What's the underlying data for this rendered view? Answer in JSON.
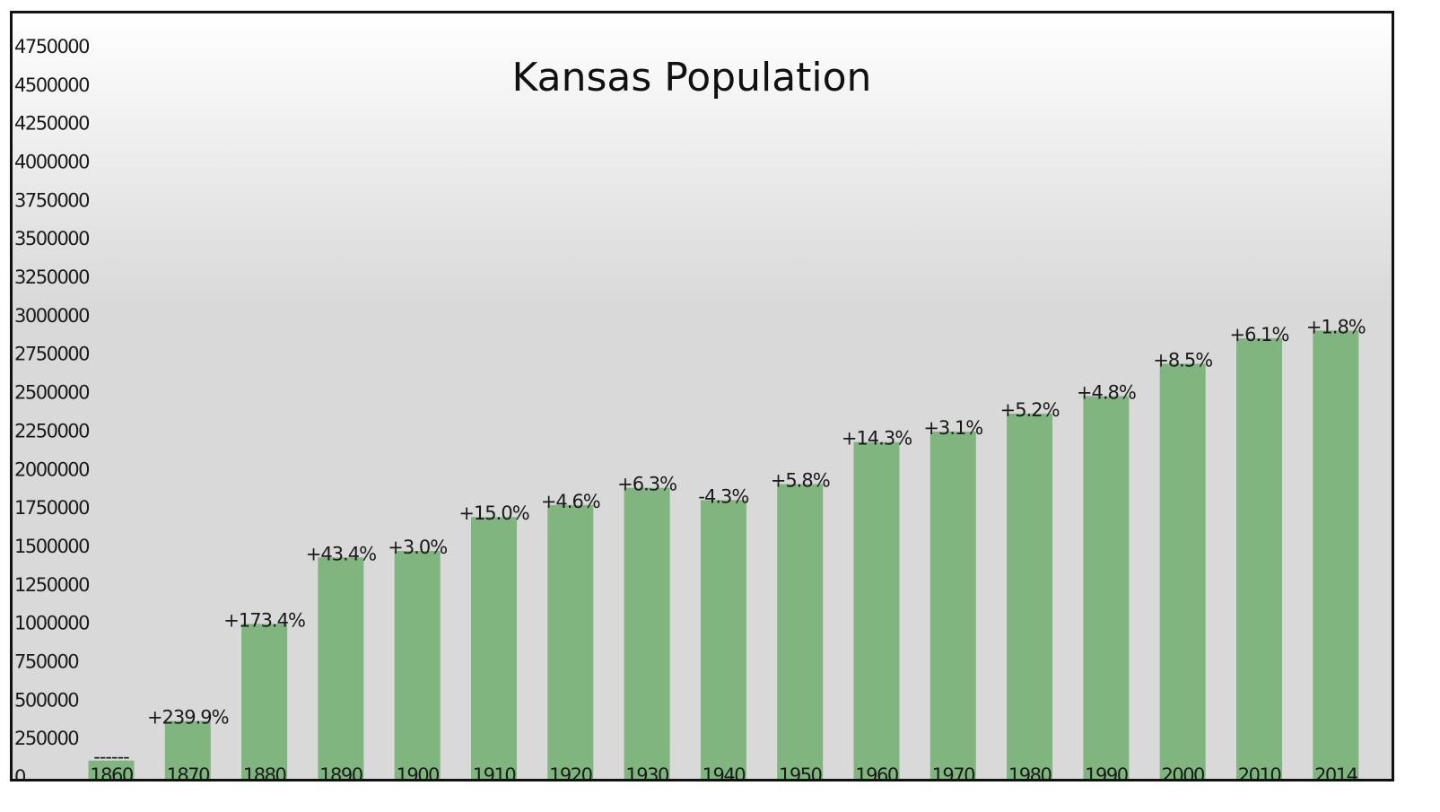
{
  "chart_data": {
    "type": "bar",
    "title": "Kansas Population",
    "xlabel": "",
    "ylabel": "",
    "categories": [
      "1860",
      "1870",
      "1880",
      "1890",
      "1900",
      "1910",
      "1920",
      "1930",
      "1940",
      "1950",
      "1960",
      "1970",
      "1980",
      "1990",
      "2000",
      "2010",
      "2014"
    ],
    "values": [
      107206,
      364399,
      996096,
      1428108,
      1470495,
      1690949,
      1769257,
      1880999,
      1801028,
      1905299,
      2178611,
      2246578,
      2363679,
      2477574,
      2688418,
      2853118,
      2904021
    ],
    "data_labels": [
      "------",
      "+239.9%",
      "+173.4%",
      "+43.4%",
      "+3.0%",
      "+15.0%",
      "+4.6%",
      "+6.3%",
      "-4.3%",
      "+5.8%",
      "+14.3%",
      "+3.1%",
      "+5.2%",
      "+4.8%",
      "+8.5%",
      "+6.1%",
      "+1.8%"
    ],
    "ylim": [
      0,
      4750000
    ],
    "yticks": [
      "0",
      "250000",
      "500000",
      "750000",
      "1000000",
      "1250000",
      "1500000",
      "1750000",
      "2000000",
      "2250000",
      "2500000",
      "2750000",
      "3000000",
      "3250000",
      "3500000",
      "3750000",
      "4000000",
      "4250000",
      "4500000",
      "4750000"
    ],
    "grid": false,
    "legend": "none",
    "colors": {
      "bar": "#80b580",
      "background_top": "#ffffff",
      "background_bottom": "#d9d9d9"
    }
  }
}
